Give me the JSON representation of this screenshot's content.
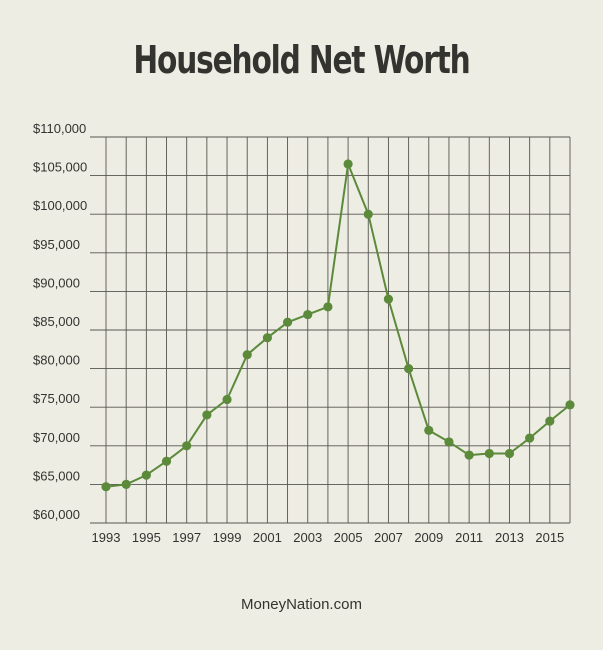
{
  "chart_data": {
    "type": "line",
    "title": "Household Net Worth",
    "xlabel": "",
    "ylabel": "",
    "ylim": [
      60000,
      110000
    ],
    "y_ticks": [
      60000,
      65000,
      70000,
      75000,
      80000,
      85000,
      90000,
      95000,
      100000,
      105000,
      110000
    ],
    "y_tick_labels": [
      "$60,000",
      "$65,000",
      "$70,000",
      "$75,000",
      "$80,000",
      "$85,000",
      "$90,000",
      "$95,000",
      "$100,000",
      "$105,000",
      "$110,000"
    ],
    "xlim": [
      1993,
      2016
    ],
    "x_tick_labels": [
      "1993",
      "1995",
      "1997",
      "1999",
      "2001",
      "2003",
      "2005",
      "2007",
      "2009",
      "2011",
      "2013",
      "2015"
    ],
    "grid": true,
    "line_color": "#5b8a3a",
    "grid_color": "#55554f",
    "series": [
      {
        "x": [
          1993,
          1994,
          1995,
          1996,
          1997,
          1998,
          1999,
          2000,
          2001,
          2002,
          2003,
          2004,
          2005,
          2006,
          2007,
          2008,
          2009,
          2010,
          2011,
          2012,
          2013,
          2014,
          2015,
          2016
        ],
        "values": [
          64700,
          65000,
          66200,
          68000,
          70000,
          74000,
          76000,
          81800,
          84000,
          86000,
          87000,
          88000,
          106500,
          100000,
          89000,
          80000,
          72000,
          70500,
          68800,
          69000,
          69000,
          71000,
          73200,
          75300
        ]
      }
    ]
  },
  "footer": {
    "source": "MoneyNation.com"
  }
}
